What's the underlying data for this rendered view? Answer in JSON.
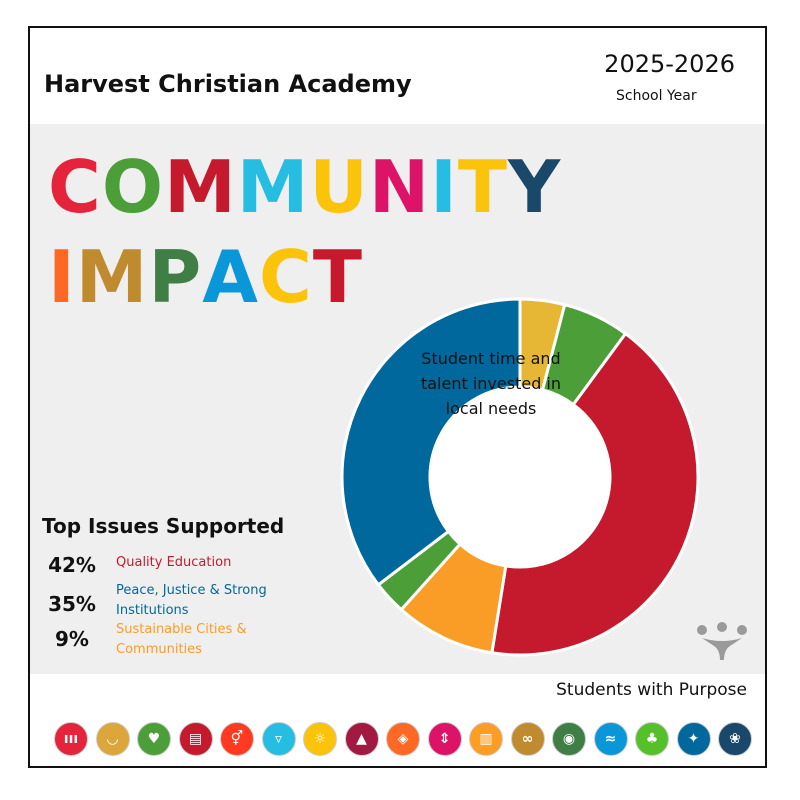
{
  "header": {
    "school_name": "Harvest Christian Academy",
    "year": "2025-2026",
    "year_sub": "School Year"
  },
  "headline": {
    "line1": [
      {
        "ch": "C",
        "color": "#e5243b"
      },
      {
        "ch": "O",
        "color": "#4c9f38"
      },
      {
        "ch": "M",
        "color": "#c5192d"
      },
      {
        "ch": "M",
        "color": "#26bde2"
      },
      {
        "ch": "U",
        "color": "#fcc30b"
      },
      {
        "ch": "N",
        "color": "#dd1367"
      },
      {
        "ch": "I",
        "color": "#26bde2"
      },
      {
        "ch": "T",
        "color": "#fcc30b"
      },
      {
        "ch": "Y",
        "color": "#19486a"
      }
    ],
    "line2": [
      {
        "ch": "I",
        "color": "#fd6925"
      },
      {
        "ch": "M",
        "color": "#bf8b2e"
      },
      {
        "ch": "P",
        "color": "#3f7e44"
      },
      {
        "ch": "A",
        "color": "#0a97d9"
      },
      {
        "ch": "C",
        "color": "#fcc30b"
      },
      {
        "ch": "T",
        "color": "#c5192d"
      }
    ]
  },
  "issues": {
    "title": "Top Issues Supported",
    "items": [
      {
        "pct": "42%",
        "label": "Quality Education",
        "color": "#c5192d"
      },
      {
        "pct": "35%",
        "label": "Peace, Justice & Strong Institutions",
        "color": "#00689d"
      },
      {
        "pct": "9%",
        "label": "Sustainable Cities & Communities",
        "color": "#f99d26"
      }
    ]
  },
  "chart_data": {
    "type": "pie",
    "center_label": "Student time and talent invested in local needs",
    "slices": [
      {
        "value": 4,
        "color": "#e5b735"
      },
      {
        "value": 6,
        "color": "#4c9f38"
      },
      {
        "value": 42,
        "color": "#c5192d"
      },
      {
        "value": 9,
        "color": "#f99d26"
      },
      {
        "value": 3,
        "color": "#4c9f38"
      },
      {
        "value": 35,
        "color": "#00689d"
      }
    ]
  },
  "footer": {
    "tagline": "Students with Purpose",
    "sdg_icons": [
      {
        "name": "no-poverty-icon",
        "color": "#e5243b",
        "glyph": "ııı"
      },
      {
        "name": "zero-hunger-icon",
        "color": "#dda63a",
        "glyph": "◡"
      },
      {
        "name": "good-health-icon",
        "color": "#4c9f38",
        "glyph": "♥"
      },
      {
        "name": "quality-education-icon",
        "color": "#c5192d",
        "glyph": "▤"
      },
      {
        "name": "gender-equality-icon",
        "color": "#ff3a21",
        "glyph": "⚥"
      },
      {
        "name": "clean-water-icon",
        "color": "#26bde2",
        "glyph": "▿"
      },
      {
        "name": "clean-energy-icon",
        "color": "#fcc30b",
        "glyph": "☼"
      },
      {
        "name": "decent-work-icon",
        "color": "#a21942",
        "glyph": "▲"
      },
      {
        "name": "industry-innovation-icon",
        "color": "#fd6925",
        "glyph": "◈"
      },
      {
        "name": "reduced-inequalities-icon",
        "color": "#dd1367",
        "glyph": "⇕"
      },
      {
        "name": "sustainable-cities-icon",
        "color": "#fd9d24",
        "glyph": "▥"
      },
      {
        "name": "responsible-consumption-icon",
        "color": "#bf8b2e",
        "glyph": "∞"
      },
      {
        "name": "climate-action-icon",
        "color": "#3f7e44",
        "glyph": "◉"
      },
      {
        "name": "life-below-water-icon",
        "color": "#0a97d9",
        "glyph": "≈"
      },
      {
        "name": "life-on-land-icon",
        "color": "#56c02b",
        "glyph": "♣"
      },
      {
        "name": "peace-justice-icon",
        "color": "#00689d",
        "glyph": "✦"
      },
      {
        "name": "partnerships-icon",
        "color": "#19486a",
        "glyph": "❀"
      }
    ]
  }
}
